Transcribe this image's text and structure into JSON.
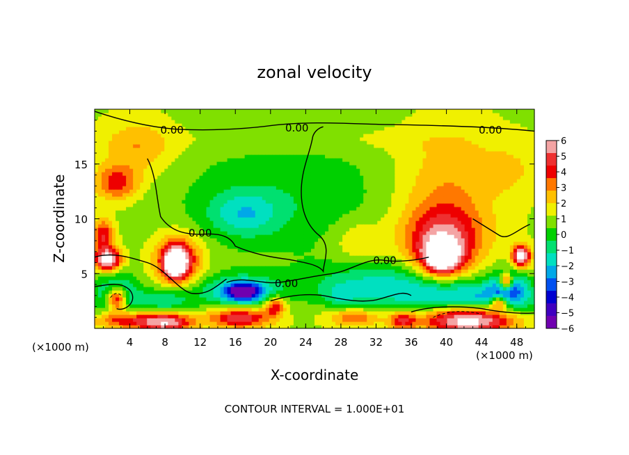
{
  "chart_data": {
    "type": "heatmap",
    "title": "zonal velocity",
    "xlabel": "X-coordinate",
    "ylabel": "Z-coordinate",
    "x_unit_left": "(×1000 m)",
    "x_unit_right": "(×1000 m)",
    "xlim": [
      0,
      50
    ],
    "ylim": [
      0,
      20
    ],
    "x_ticks": [
      "4",
      "8",
      "12",
      "16",
      "20",
      "24",
      "28",
      "32",
      "36",
      "40",
      "44",
      "48"
    ],
    "x_tick_values": [
      4,
      8,
      12,
      16,
      20,
      24,
      28,
      32,
      36,
      40,
      44,
      48
    ],
    "y_ticks": [
      "15",
      "10",
      "5"
    ],
    "y_tick_values": [
      15,
      10,
      5
    ],
    "footer": "CONTOUR INTERVAL = 1.000E+01",
    "contour_labels": [
      {
        "text": "0.00",
        "x": 8.8,
        "y": 18.1
      },
      {
        "text": "0.00",
        "x": 23.0,
        "y": 18.3
      },
      {
        "text": "0.00",
        "x": 45.0,
        "y": 18.1
      },
      {
        "text": "0.00",
        "x": 12.0,
        "y": 8.7
      },
      {
        "text": "0.00",
        "x": 21.8,
        "y": 4.1
      },
      {
        "text": "0.00",
        "x": 33.0,
        "y": 6.2
      }
    ],
    "colorbar": {
      "labels": [
        "6",
        "5",
        "4",
        "3",
        "2",
        "1",
        "0",
        "−1",
        "−2",
        "−3",
        "−4",
        "−5",
        "−6"
      ],
      "colors": [
        "#f4a4a4",
        "#ee3030",
        "#ee0000",
        "#ff7800",
        "#ffc000",
        "#f0f000",
        "#80e000",
        "#00d000",
        "#00e070",
        "#00e0c0",
        "#00a8e8",
        "#0050f0",
        "#0000d0",
        "#4000c0",
        "#7000b0"
      ]
    },
    "blobs": [
      {
        "x": 22,
        "y": 12,
        "rx": 14,
        "ry": 6,
        "v": -1.5
      },
      {
        "x": 17,
        "y": 10.5,
        "rx": 4,
        "ry": 2,
        "v": -2.5
      },
      {
        "x": 5,
        "y": 16.5,
        "rx": 4,
        "ry": 2.5,
        "v": 2
      },
      {
        "x": 2.5,
        "y": 13.3,
        "rx": 2.5,
        "ry": 1.6,
        "v": 3.5
      },
      {
        "x": 40,
        "y": 13,
        "rx": 6,
        "ry": 5,
        "v": 2
      },
      {
        "x": 39.5,
        "y": 8.2,
        "rx": 4.5,
        "ry": 3,
        "v": 4.5
      },
      {
        "x": 39.5,
        "y": 6.5,
        "rx": 2.2,
        "ry": 1.6,
        "v": 7
      },
      {
        "x": 9.5,
        "y": 6.3,
        "rx": 2.6,
        "ry": 2.2,
        "v": 5
      },
      {
        "x": 9.2,
        "y": 6.0,
        "rx": 1.2,
        "ry": 1.3,
        "v": 7
      },
      {
        "x": 16.5,
        "y": 3.4,
        "rx": 5,
        "ry": 1.5,
        "v": -3.5
      },
      {
        "x": 17,
        "y": 3.4,
        "rx": 2,
        "ry": 0.8,
        "v": -5
      },
      {
        "x": 33,
        "y": 4,
        "rx": 8,
        "ry": 2,
        "v": -3
      },
      {
        "x": 2.5,
        "y": 3,
        "rx": 2.5,
        "ry": 2,
        "v": -4
      },
      {
        "x": 2.5,
        "y": 2.7,
        "rx": 1.2,
        "ry": 1.1,
        "v": 7
      },
      {
        "x": 1.5,
        "y": 6.3,
        "rx": 1.5,
        "ry": 1,
        "v": 7
      },
      {
        "x": 1,
        "y": 8.5,
        "rx": 1.2,
        "ry": 1.5,
        "v": 4
      },
      {
        "x": 44,
        "y": 2.8,
        "rx": 8,
        "ry": 1.5,
        "v": -3.5
      },
      {
        "x": 42.5,
        "y": 0.8,
        "rx": 5,
        "ry": 1.2,
        "v": 7
      },
      {
        "x": 47,
        "y": 4,
        "rx": 2,
        "ry": 1.5,
        "v": -4
      },
      {
        "x": 46.8,
        "y": 4.3,
        "rx": 0.8,
        "ry": 0.8,
        "v": 7
      },
      {
        "x": 48.5,
        "y": 6.6,
        "rx": 1,
        "ry": 1,
        "v": 7
      },
      {
        "x": 3,
        "y": 0.8,
        "rx": 3,
        "ry": 0.8,
        "v": 4
      },
      {
        "x": 8,
        "y": 0.6,
        "rx": 3,
        "ry": 0.9,
        "v": 6
      },
      {
        "x": 16.5,
        "y": 1,
        "rx": 3.5,
        "ry": 0.9,
        "v": 5
      },
      {
        "x": 20.5,
        "y": 2.1,
        "rx": 1.2,
        "ry": 0.9,
        "v": 4
      },
      {
        "x": 29.5,
        "y": 1,
        "rx": 3,
        "ry": 0.8,
        "v": 3
      },
      {
        "x": 35,
        "y": 0.8,
        "rx": 1.5,
        "ry": 0.8,
        "v": 4
      },
      {
        "x": 46,
        "y": 2.4,
        "rx": 1,
        "ry": 0.6,
        "v": 5
      },
      {
        "x": 47,
        "y": 14.5,
        "rx": 3,
        "ry": 2,
        "v": 1.2
      },
      {
        "x": 30,
        "y": 8,
        "rx": 3,
        "ry": 2,
        "v": 1.5
      },
      {
        "x": 25,
        "y": 17.2,
        "rx": 20,
        "ry": 1.2,
        "v": 0.6
      },
      {
        "x": 8,
        "y": 2.5,
        "rx": 3,
        "ry": 1.2,
        "v": -2.5
      },
      {
        "x": 28,
        "y": 3,
        "rx": 2,
        "ry": 1,
        "v": -1.5
      }
    ],
    "contour_paths": [
      "M0,19.8 C3,19 6,18.4 9,18.2 C13,18 17,18.2 20,18.5 C25,19 30,18.6 34,18.6 C40,18.5 45,18.4 50,18",
      "M6,15.5 C7,14 7,12 7.5,10.2 C8.5,9 10,8.5 12.5,8.6 C14.5,8.7 15.5,8.3 16,7.5 C18,6.8 20,6.5 22,6.3 C24,6 25.5,5.8 26,5.2 C26,6 27,7.5 25.5,8.5 C24,9.5 23.5,11 23.5,12.5 C23.5,14.5 24.5,16 24.8,17.5 C25,18 25.5,18.3 26,18.4",
      "M0,6.5 C2,7 4,6.5 6,6 C8,5.5 9.5,3.5 11,3.2 C13,3 14,4 15,4.5",
      "M15,4.2 C17,4.8 19,4 21,4.2 C23,4.4 25,4.8 27,5 C29,5.2 31,6.5 33,6.2 C35,6 37,6.3 38,6.5",
      "M0,3.8 C1.5,4 3,4.3 4,3.5 C5,2.5 3.5,1.5 2.5,1.8",
      "M36,1.5 C38,2 41,2.1 44,1.8 C46,1.5 48,1.3 50,1.4",
      "M43,10 C44,9.5 45,9 46,8.5 C47,8 48,9 49.5,9.5",
      "M20,2.5 C22,3 24,3.2 26,3 C28,2.7 30,2.3 32,2.6 C34,3 35,3.5 36,3"
    ],
    "dashed_paths": [
      "M1.8,2.8 C2.2,3.3 2.8,3.3 3.1,2.9",
      "M38.5,1 C40,1.6 42,1.7 44,1.3"
    ]
  }
}
